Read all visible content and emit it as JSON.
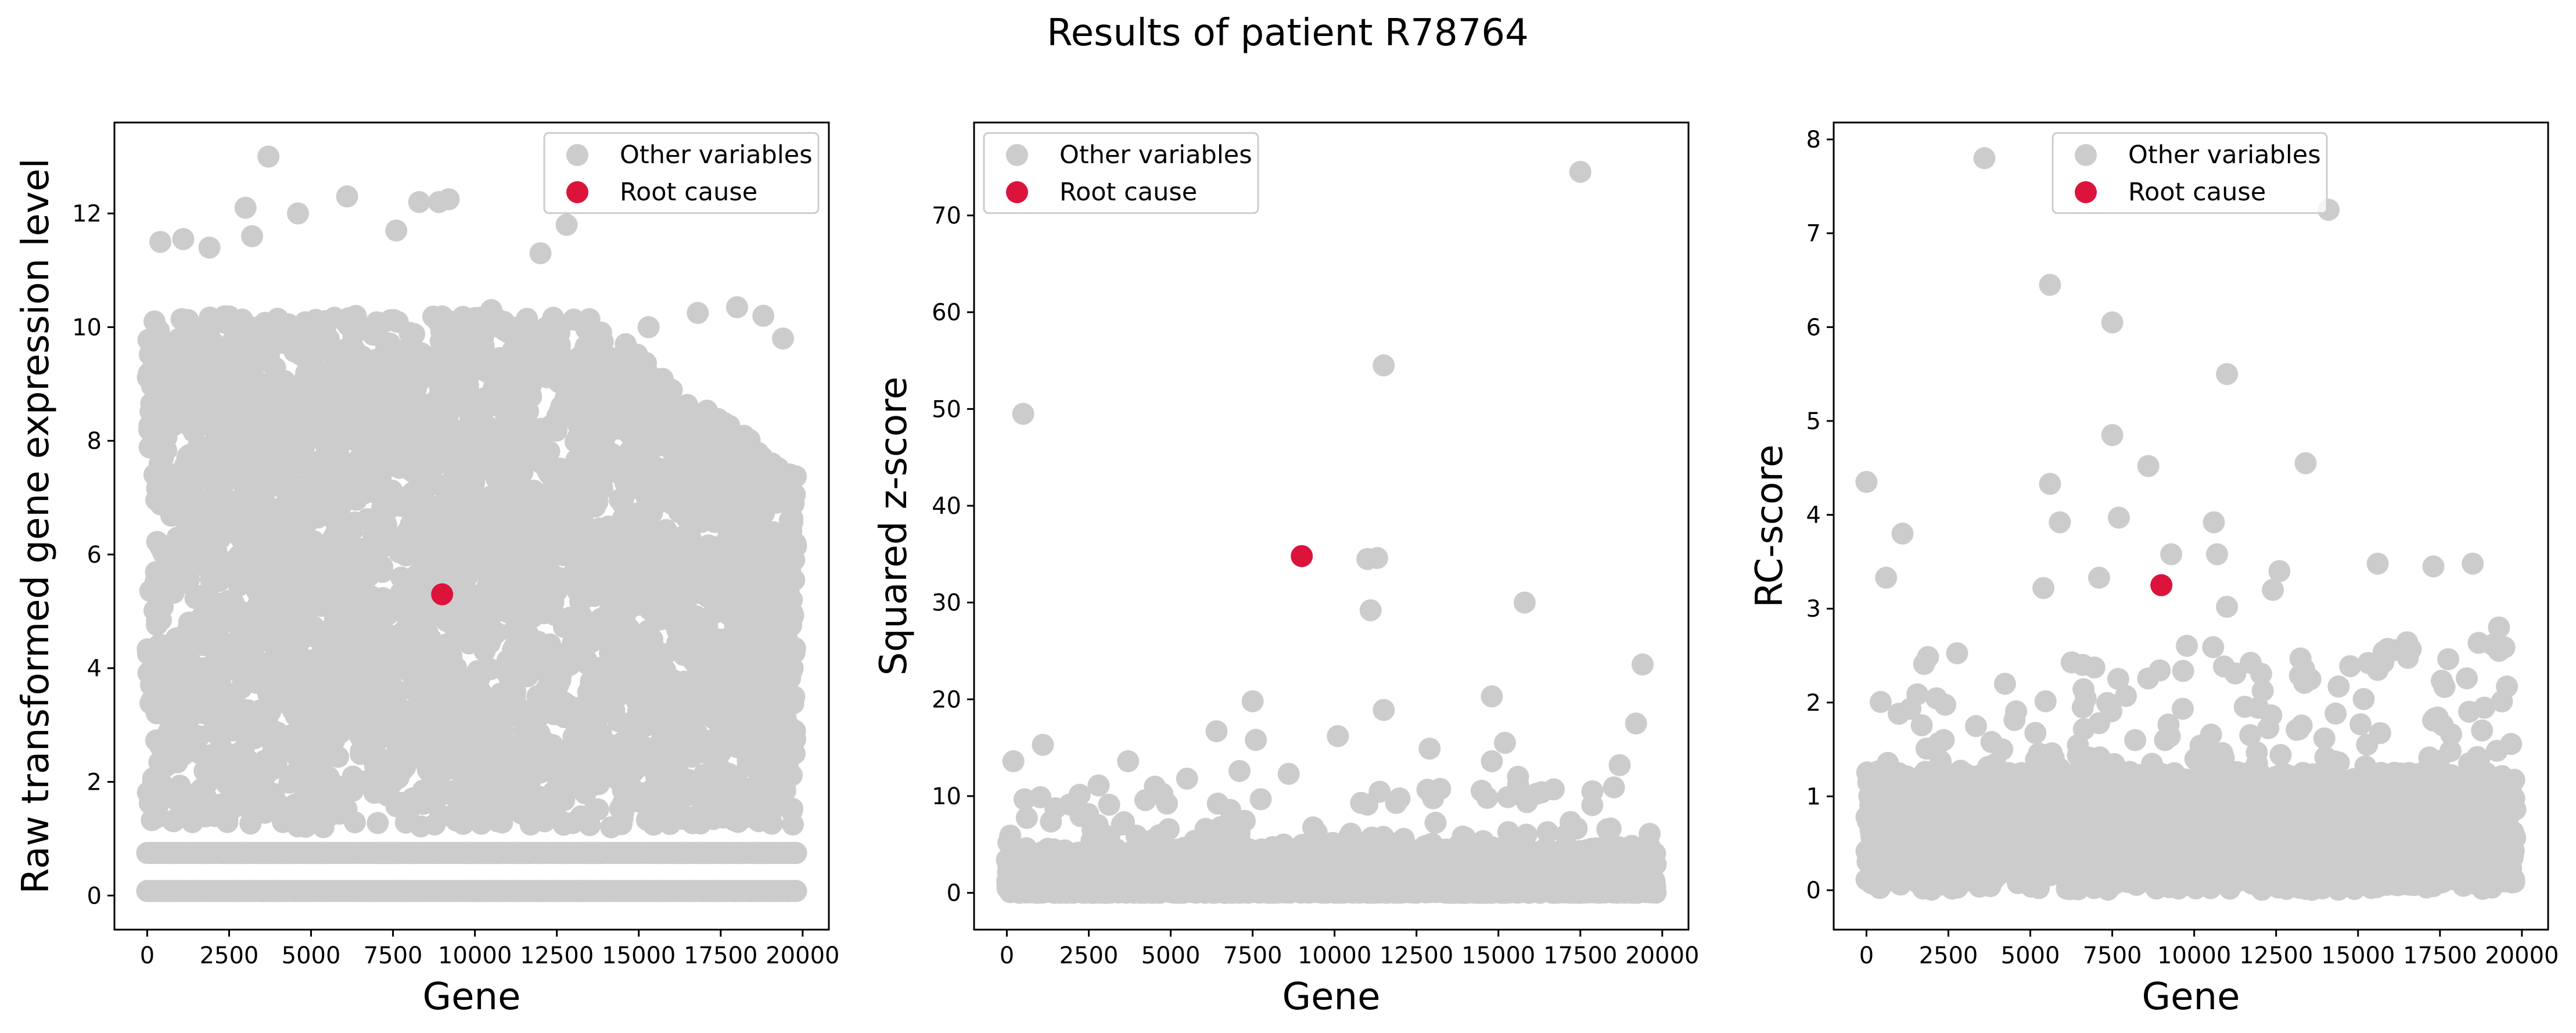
{
  "figure": {
    "suptitle": "Results of patient R78764"
  },
  "colors": {
    "other": "#cccccc",
    "root": "#dc143c"
  },
  "legend": {
    "other_label": "Other variables",
    "root_label": "Root cause"
  },
  "chart_data": [
    {
      "type": "scatter",
      "xlabel": "Gene",
      "ylabel": "Raw transformed gene expression level",
      "xlim": [
        -1000,
        20800
      ],
      "ylim": [
        -0.6,
        13.6
      ],
      "xticks": [
        0,
        2500,
        5000,
        7500,
        10000,
        12500,
        15000,
        17500,
        20000
      ],
      "xticklabels": [
        "0",
        "2500",
        "5000",
        "7500",
        "10000",
        "12500",
        "15000",
        "17500",
        "20000"
      ],
      "yticks": [
        0,
        2,
        4,
        6,
        8,
        10,
        12
      ],
      "yticklabels": [
        "0",
        "2",
        "4",
        "6",
        "8",
        "10",
        "12"
      ],
      "legend_position": "upper right",
      "root_cause": {
        "x": 9000,
        "y": 5.3
      },
      "other_variables": {
        "n_genes": 19800,
        "description": "dense band 1.2-10 plus discrete rows at 0.08 and 0.75",
        "notable": [
          {
            "x": 3700,
            "y": 13.0
          },
          {
            "x": 6100,
            "y": 12.3
          },
          {
            "x": 3000,
            "y": 12.1
          },
          {
            "x": 4600,
            "y": 12.0
          },
          {
            "x": 8300,
            "y": 12.2
          },
          {
            "x": 8900,
            "y": 12.2
          },
          {
            "x": 9200,
            "y": 12.25
          },
          {
            "x": 12800,
            "y": 11.8
          },
          {
            "x": 7600,
            "y": 11.7
          },
          {
            "x": 1100,
            "y": 11.55
          },
          {
            "x": 400,
            "y": 11.5
          },
          {
            "x": 1900,
            "y": 11.4
          },
          {
            "x": 3200,
            "y": 11.6
          },
          {
            "x": 16800,
            "y": 10.25
          },
          {
            "x": 18800,
            "y": 10.2
          },
          {
            "x": 19400,
            "y": 9.8
          },
          {
            "x": 18000,
            "y": 10.35
          },
          {
            "x": 15300,
            "y": 10.0
          },
          {
            "x": 14600,
            "y": 9.7
          },
          {
            "x": 12000,
            "y": 11.3
          },
          {
            "x": 10500,
            "y": 10.3
          }
        ]
      }
    },
    {
      "type": "scatter",
      "xlabel": "Gene",
      "ylabel": "Squared z-score",
      "xlim": [
        -1000,
        20800
      ],
      "ylim": [
        -3.8,
        79.6
      ],
      "xticks": [
        0,
        2500,
        5000,
        7500,
        10000,
        12500,
        15000,
        17500,
        20000
      ],
      "xticklabels": [
        "0",
        "2500",
        "5000",
        "7500",
        "10000",
        "12500",
        "15000",
        "17500",
        "20000"
      ],
      "yticks": [
        0,
        10,
        20,
        30,
        40,
        50,
        60,
        70
      ],
      "yticklabels": [
        "0",
        "10",
        "20",
        "30",
        "40",
        "50",
        "60",
        "70"
      ],
      "legend_position": "upper left",
      "root_cause": {
        "x": 9000,
        "y": 34.8
      },
      "other_variables": {
        "n_genes": 19800,
        "description": "dense band near 0-5 with sparse outliers",
        "notable": [
          {
            "x": 17500,
            "y": 74.5
          },
          {
            "x": 11500,
            "y": 54.5
          },
          {
            "x": 500,
            "y": 49.5
          },
          {
            "x": 11000,
            "y": 34.5
          },
          {
            "x": 11300,
            "y": 34.6
          },
          {
            "x": 15800,
            "y": 30.0
          },
          {
            "x": 11100,
            "y": 29.2
          },
          {
            "x": 19400,
            "y": 23.6
          },
          {
            "x": 14800,
            "y": 20.3
          },
          {
            "x": 7500,
            "y": 19.8
          },
          {
            "x": 11500,
            "y": 18.9
          },
          {
            "x": 19200,
            "y": 17.5
          },
          {
            "x": 10100,
            "y": 16.2
          },
          {
            "x": 6400,
            "y": 16.7
          },
          {
            "x": 7600,
            "y": 15.8
          },
          {
            "x": 15200,
            "y": 15.5
          },
          {
            "x": 1100,
            "y": 15.3
          },
          {
            "x": 12900,
            "y": 14.9
          },
          {
            "x": 200,
            "y": 13.6
          },
          {
            "x": 3700,
            "y": 13.6
          },
          {
            "x": 14800,
            "y": 13.6
          },
          {
            "x": 18700,
            "y": 13.2
          },
          {
            "x": 7100,
            "y": 12.6
          },
          {
            "x": 5500,
            "y": 11.8
          },
          {
            "x": 2800,
            "y": 11.1
          },
          {
            "x": 8600,
            "y": 12.3
          },
          {
            "x": 15600,
            "y": 12.0
          }
        ]
      }
    },
    {
      "type": "scatter",
      "xlabel": "Gene",
      "ylabel": "RC-score",
      "xlim": [
        -1000,
        20800
      ],
      "ylim": [
        -0.42,
        8.18
      ],
      "xticks": [
        0,
        2500,
        5000,
        7500,
        10000,
        12500,
        15000,
        17500,
        20000
      ],
      "xticklabels": [
        "0",
        "2500",
        "5000",
        "7500",
        "10000",
        "12500",
        "15000",
        "17500",
        "20000"
      ],
      "yticks": [
        0,
        1,
        2,
        3,
        4,
        5,
        6,
        7,
        8
      ],
      "yticklabels": [
        "0",
        "1",
        "2",
        "3",
        "4",
        "5",
        "6",
        "7",
        "8"
      ],
      "legend_position": "upper center",
      "root_cause": {
        "x": 9000,
        "y": 3.25
      },
      "other_variables": {
        "n_genes": 19800,
        "description": "dense band 0-1.3 with sparse outliers",
        "notable": [
          {
            "x": 3600,
            "y": 7.8
          },
          {
            "x": 14100,
            "y": 7.25
          },
          {
            "x": 5600,
            "y": 6.45
          },
          {
            "x": 7500,
            "y": 6.05
          },
          {
            "x": 11000,
            "y": 5.5
          },
          {
            "x": 7500,
            "y": 4.85
          },
          {
            "x": 13400,
            "y": 4.55
          },
          {
            "x": 8600,
            "y": 4.52
          },
          {
            "x": 0,
            "y": 4.35
          },
          {
            "x": 5600,
            "y": 4.33
          },
          {
            "x": 5900,
            "y": 3.92
          },
          {
            "x": 7700,
            "y": 3.97
          },
          {
            "x": 10600,
            "y": 3.92
          },
          {
            "x": 1100,
            "y": 3.8
          },
          {
            "x": 9300,
            "y": 3.58
          },
          {
            "x": 10700,
            "y": 3.58
          },
          {
            "x": 15600,
            "y": 3.48
          },
          {
            "x": 17300,
            "y": 3.45
          },
          {
            "x": 18500,
            "y": 3.48
          },
          {
            "x": 600,
            "y": 3.33
          },
          {
            "x": 7100,
            "y": 3.33
          },
          {
            "x": 12600,
            "y": 3.4
          },
          {
            "x": 12400,
            "y": 3.2
          },
          {
            "x": 5400,
            "y": 3.22
          },
          {
            "x": 19300,
            "y": 2.8
          },
          {
            "x": 19300,
            "y": 2.55
          },
          {
            "x": 11000,
            "y": 3.02
          }
        ]
      }
    }
  ]
}
